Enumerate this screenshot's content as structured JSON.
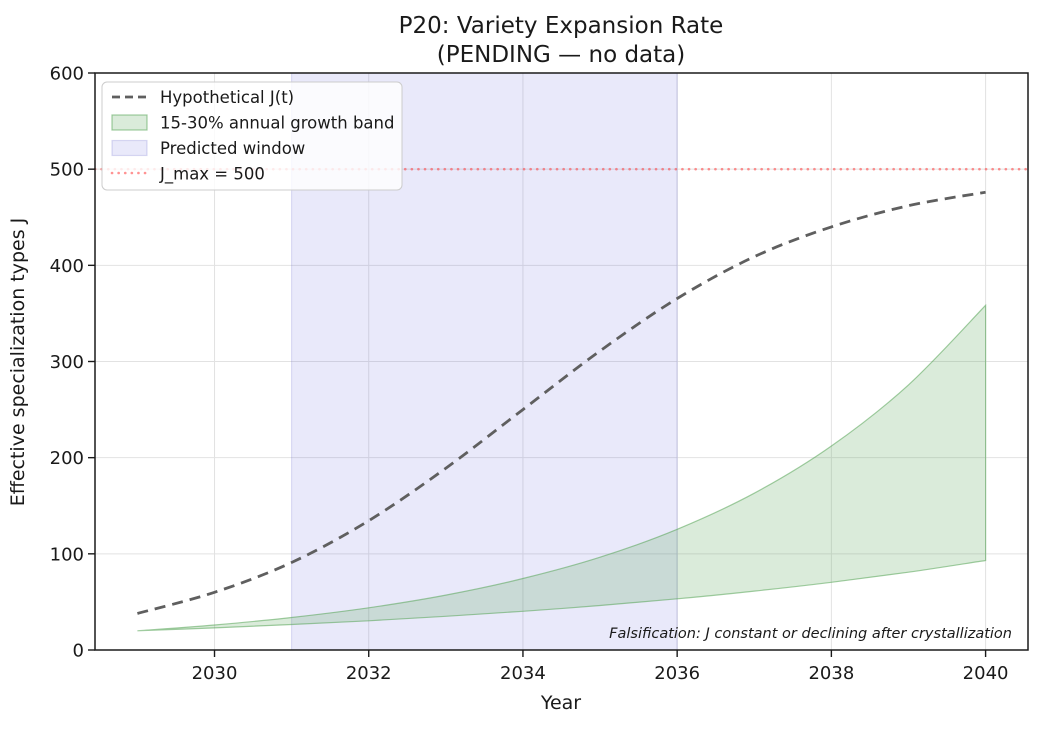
{
  "title": {
    "line1": "P20: Variety Expansion Rate",
    "line2": "(PENDING — no data)"
  },
  "axes": {
    "xlabel": "Year",
    "ylabel": "Effective specialization types J"
  },
  "legend": {
    "items": [
      {
        "label": "Hypothetical J(t)",
        "type": "dashed-line"
      },
      {
        "label": "15-30% annual growth band",
        "type": "filled-patch"
      },
      {
        "label": "Predicted window",
        "type": "filled-patch"
      },
      {
        "label": "J_max = 500",
        "type": "dotted-line"
      }
    ]
  },
  "annotation": {
    "text": "Falsification: J constant or declining after crystallization"
  },
  "colors": {
    "hypothetical_line": "#5f5f5f",
    "band_fill": "rgba(86,164,86,0.22)",
    "band_edge": "rgba(86,164,86,0.55)",
    "window_fill": "rgba(88,88,214,0.13)",
    "window_edge": "rgba(96,96,200,0.22)",
    "jmax_line": "rgba(255,59,59,0.55)",
    "grid": "#e2e2e2",
    "spine": "#1a1a1a",
    "text": "#1a1a1a",
    "annotation_text": "#8a8a8a"
  },
  "chart_data": {
    "type": "line",
    "title": "P20: Variety Expansion Rate (PENDING — no data)",
    "xlabel": "Year",
    "ylabel": "Effective specialization types J",
    "xlim": [
      2028.45,
      2040.55
    ],
    "ylim": [
      0,
      600
    ],
    "xticks": [
      2030,
      2032,
      2034,
      2036,
      2038,
      2040
    ],
    "yticks": [
      0,
      100,
      200,
      300,
      400,
      500,
      600
    ],
    "grid": true,
    "legend_position": "upper left",
    "x": [
      2029,
      2030,
      2031,
      2032,
      2033,
      2034,
      2035,
      2036,
      2037,
      2038,
      2039,
      2040
    ],
    "series": [
      {
        "name": "Hypothetical J(t)",
        "style": "dashed-sigmoid",
        "values": [
          38,
          60,
          91,
          134.5,
          189,
          250,
          311,
          365.5,
          409,
          440,
          462,
          476
        ]
      },
      {
        "name": "15% annual growth (band lower edge)",
        "style": "band-lower",
        "values": [
          20,
          23,
          26.5,
          30.4,
          35,
          40.2,
          46.3,
          53.2,
          61.2,
          70.4,
          80.9,
          93.1
        ]
      },
      {
        "name": "30% annual growth (band upper edge)",
        "style": "band-upper",
        "values": [
          20,
          26,
          33.8,
          43.9,
          57.1,
          74.3,
          96.5,
          125.5,
          163.1,
          212.1,
          275.7,
          358.4
        ]
      }
    ],
    "jmax": {
      "label": "J_max = 500",
      "value": 500
    },
    "predicted_window": {
      "label": "Predicted window",
      "x_start": 2031,
      "x_end": 2036
    }
  }
}
